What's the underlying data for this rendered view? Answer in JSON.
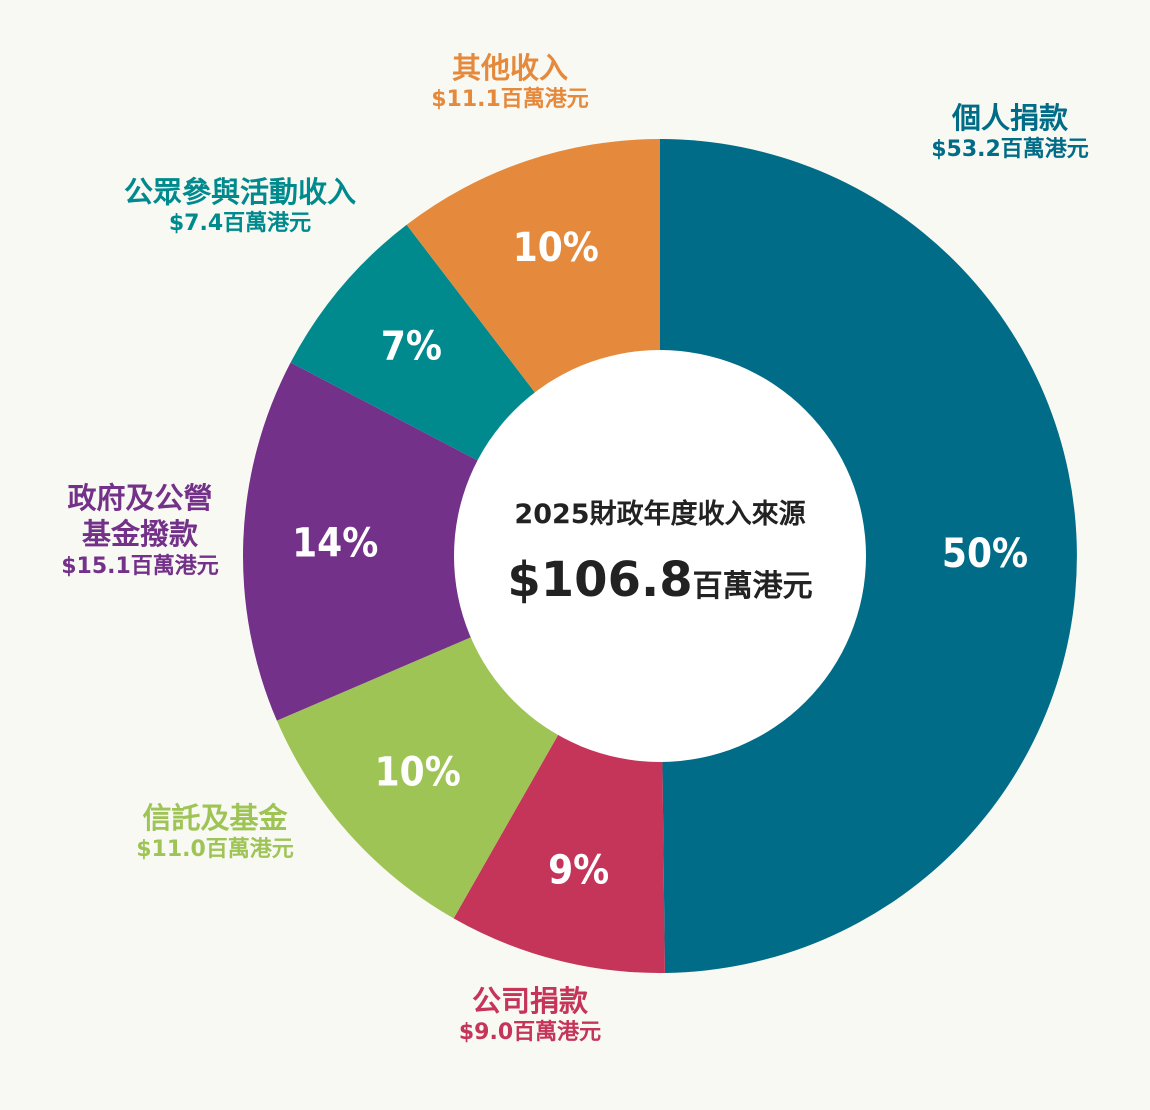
{
  "chart_data": {
    "type": "pie",
    "title": "2025財政年度收入來源",
    "total": {
      "value": "$106.8",
      "unit": "百萬港元"
    },
    "slices": [
      {
        "name": "個人捐款",
        "value": 53.2,
        "value_text": "$53.2百萬港元",
        "percent_text": "50%",
        "color": "#006c87"
      },
      {
        "name": "公司捐款",
        "value": 9.0,
        "value_text": "$9.0百萬港元",
        "percent_text": "9%",
        "color": "#c53459"
      },
      {
        "name": "信託及基金",
        "value": 11.0,
        "value_text": "$11.0百萬港元",
        "percent_text": "10%",
        "color": "#9fc456"
      },
      {
        "name": "政府及公營基金撥款",
        "name_lines": [
          "政府及公營",
          "基金撥款"
        ],
        "value": 15.1,
        "value_text": "$15.1百萬港元",
        "percent_text": "14%",
        "color": "#73318a"
      },
      {
        "name": "公眾參與活動收入",
        "value": 7.4,
        "value_text": "$7.4百萬港元",
        "percent_text": "7%",
        "color": "#008a8e"
      },
      {
        "name": "其他收入",
        "value": 11.1,
        "value_text": "$11.1百萬港元",
        "percent_text": "10%",
        "color": "#e58a3d"
      }
    ]
  }
}
